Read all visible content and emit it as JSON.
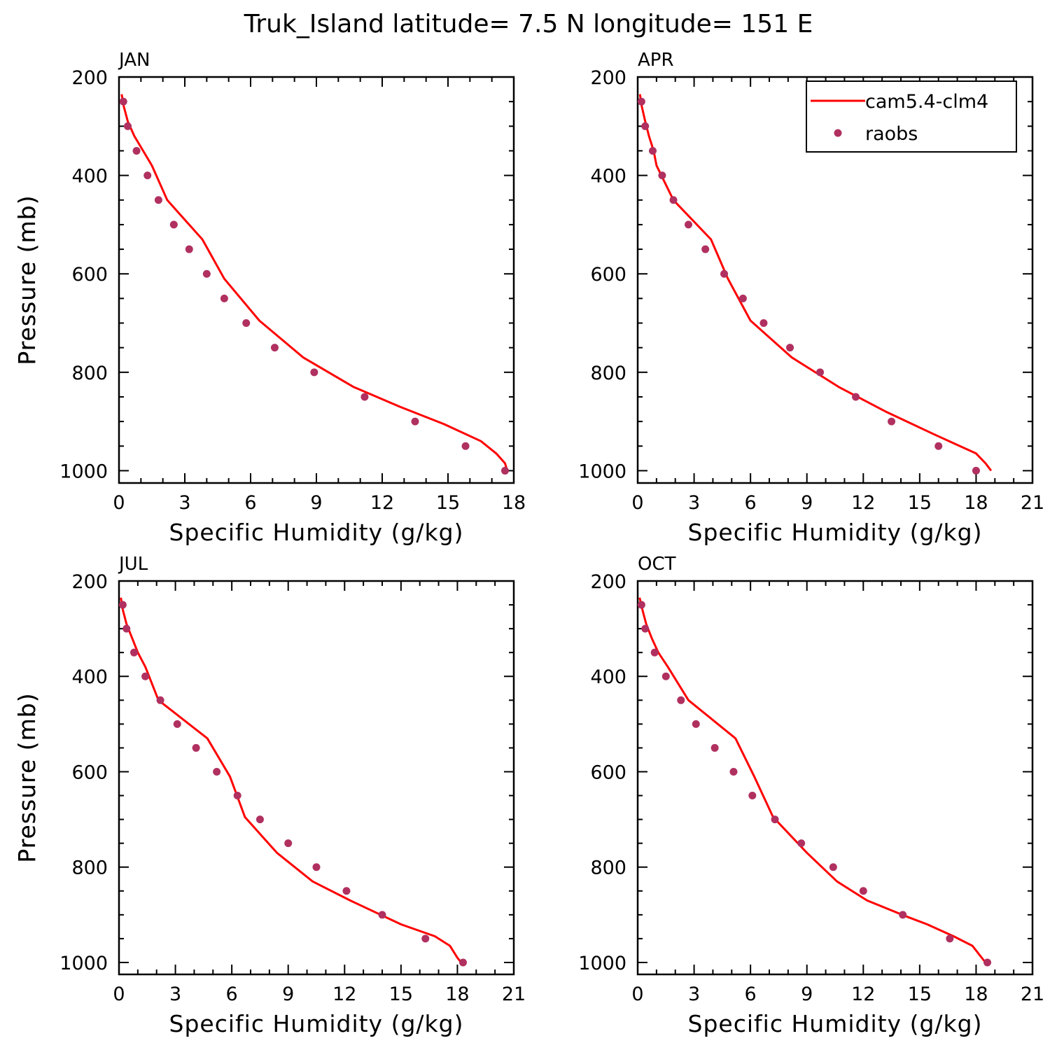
{
  "title": "Truk_Island  latitude= 7.5 N longitude= 151 E",
  "legend": {
    "entries": [
      {
        "label": "cam5.4-clm4",
        "type": "line",
        "color": "#ff0000"
      },
      {
        "label": "raobs",
        "type": "marker",
        "color": "#b03060"
      }
    ]
  },
  "chart_data": [
    {
      "type": "line",
      "month": "JAN",
      "xlabel": "Specific Humidity (g/kg)",
      "ylabel": "Pressure (mb)",
      "xlim": [
        0,
        18
      ],
      "ylim": [
        200,
        1025
      ],
      "y_inverted": true,
      "xticks": [
        0,
        3,
        6,
        9,
        12,
        15,
        18
      ],
      "yticks": [
        200,
        400,
        600,
        800,
        1000
      ],
      "series": [
        {
          "name": "cam5.4-clm4",
          "kind": "line",
          "color": "#ff0000",
          "points": [
            [
              0.12,
              235
            ],
            [
              0.22,
              260
            ],
            [
              0.4,
              290
            ],
            [
              0.7,
              320
            ],
            [
              1.1,
              350
            ],
            [
              1.5,
              380
            ],
            [
              2.2,
              450
            ],
            [
              3.8,
              530
            ],
            [
              4.8,
              610
            ],
            [
              6.4,
              695
            ],
            [
              8.4,
              770
            ],
            [
              10.7,
              830
            ],
            [
              12.8,
              870
            ],
            [
              14.8,
              905
            ],
            [
              16.5,
              940
            ],
            [
              17.2,
              965
            ],
            [
              17.6,
              985
            ],
            [
              17.7,
              1000
            ]
          ]
        },
        {
          "name": "raobs",
          "kind": "scatter",
          "color": "#b03060",
          "points": [
            [
              0.2,
              250
            ],
            [
              0.4,
              300
            ],
            [
              0.8,
              350
            ],
            [
              1.3,
              400
            ],
            [
              1.8,
              450
            ],
            [
              2.5,
              500
            ],
            [
              3.2,
              550
            ],
            [
              4.0,
              600
            ],
            [
              4.8,
              650
            ],
            [
              5.8,
              700
            ],
            [
              7.1,
              750
            ],
            [
              8.9,
              800
            ],
            [
              11.2,
              850
            ],
            [
              13.5,
              900
            ],
            [
              15.8,
              950
            ],
            [
              17.6,
              1000
            ]
          ]
        }
      ]
    },
    {
      "type": "line",
      "month": "APR",
      "xlabel": "Specific Humidity (g/kg)",
      "ylabel": "Pressure (mb)",
      "xlim": [
        0,
        21
      ],
      "ylim": [
        200,
        1025
      ],
      "y_inverted": true,
      "xticks": [
        0,
        3,
        6,
        9,
        12,
        15,
        18,
        21
      ],
      "yticks": [
        200,
        400,
        600,
        800,
        1000
      ],
      "series": [
        {
          "name": "cam5.4-clm4",
          "kind": "line",
          "color": "#ff0000",
          "points": [
            [
              0.12,
              235
            ],
            [
              0.22,
              260
            ],
            [
              0.4,
              290
            ],
            [
              0.6,
              320
            ],
            [
              0.85,
              350
            ],
            [
              1.0,
              380
            ],
            [
              1.9,
              450
            ],
            [
              3.9,
              530
            ],
            [
              4.8,
              610
            ],
            [
              6.0,
              695
            ],
            [
              8.2,
              770
            ],
            [
              10.7,
              830
            ],
            [
              13.2,
              880
            ],
            [
              15.7,
              925
            ],
            [
              18.0,
              965
            ],
            [
              18.5,
              985
            ],
            [
              18.8,
              1000
            ]
          ]
        },
        {
          "name": "raobs",
          "kind": "scatter",
          "color": "#b03060",
          "points": [
            [
              0.2,
              250
            ],
            [
              0.4,
              300
            ],
            [
              0.8,
              350
            ],
            [
              1.3,
              400
            ],
            [
              1.9,
              450
            ],
            [
              2.7,
              500
            ],
            [
              3.6,
              550
            ],
            [
              4.6,
              600
            ],
            [
              5.6,
              650
            ],
            [
              6.7,
              700
            ],
            [
              8.1,
              750
            ],
            [
              9.7,
              800
            ],
            [
              11.6,
              850
            ],
            [
              13.5,
              900
            ],
            [
              16.0,
              950
            ],
            [
              18.0,
              1000
            ]
          ]
        }
      ]
    },
    {
      "type": "line",
      "month": "JUL",
      "xlabel": "Specific Humidity (g/kg)",
      "ylabel": "Pressure (mb)",
      "xlim": [
        0,
        21
      ],
      "ylim": [
        200,
        1025
      ],
      "y_inverted": true,
      "xticks": [
        0,
        3,
        6,
        9,
        12,
        15,
        18,
        21
      ],
      "yticks": [
        200,
        400,
        600,
        800,
        1000
      ],
      "series": [
        {
          "name": "cam5.4-clm4",
          "kind": "line",
          "color": "#ff0000",
          "points": [
            [
              0.1,
              235
            ],
            [
              0.2,
              260
            ],
            [
              0.4,
              290
            ],
            [
              0.7,
              320
            ],
            [
              1.0,
              350
            ],
            [
              1.4,
              380
            ],
            [
              2.1,
              450
            ],
            [
              4.7,
              530
            ],
            [
              5.9,
              610
            ],
            [
              6.7,
              695
            ],
            [
              8.4,
              770
            ],
            [
              10.3,
              830
            ],
            [
              12.3,
              870
            ],
            [
              15.0,
              920
            ],
            [
              16.8,
              945
            ],
            [
              17.6,
              965
            ],
            [
              18.0,
              990
            ],
            [
              18.2,
              1000
            ]
          ]
        },
        {
          "name": "raobs",
          "kind": "scatter",
          "color": "#b03060",
          "points": [
            [
              0.2,
              250
            ],
            [
              0.4,
              300
            ],
            [
              0.8,
              350
            ],
            [
              1.4,
              400
            ],
            [
              2.2,
              450
            ],
            [
              3.1,
              500
            ],
            [
              4.1,
              550
            ],
            [
              5.2,
              600
            ],
            [
              6.3,
              650
            ],
            [
              7.5,
              700
            ],
            [
              9.0,
              750
            ],
            [
              10.5,
              800
            ],
            [
              12.1,
              850
            ],
            [
              14.0,
              900
            ],
            [
              16.3,
              950
            ],
            [
              18.3,
              1000
            ]
          ]
        }
      ]
    },
    {
      "type": "line",
      "month": "OCT",
      "xlabel": "Specific Humidity (g/kg)",
      "ylabel": "Pressure (mb)",
      "xlim": [
        0,
        21
      ],
      "ylim": [
        200,
        1025
      ],
      "y_inverted": true,
      "xticks": [
        0,
        3,
        6,
        9,
        12,
        15,
        18,
        21
      ],
      "yticks": [
        200,
        400,
        600,
        800,
        1000
      ],
      "series": [
        {
          "name": "cam5.4-clm4",
          "kind": "line",
          "color": "#ff0000",
          "points": [
            [
              0.1,
              235
            ],
            [
              0.25,
              260
            ],
            [
              0.45,
              290
            ],
            [
              0.75,
              320
            ],
            [
              1.1,
              350
            ],
            [
              1.6,
              380
            ],
            [
              2.7,
              450
            ],
            [
              5.2,
              530
            ],
            [
              6.2,
              610
            ],
            [
              7.2,
              695
            ],
            [
              9.0,
              770
            ],
            [
              10.6,
              830
            ],
            [
              12.2,
              870
            ],
            [
              14.4,
              905
            ],
            [
              15.4,
              920
            ],
            [
              16.8,
              945
            ],
            [
              17.8,
              965
            ],
            [
              18.2,
              985
            ],
            [
              18.5,
              1000
            ]
          ]
        },
        {
          "name": "raobs",
          "kind": "scatter",
          "color": "#b03060",
          "points": [
            [
              0.2,
              250
            ],
            [
              0.4,
              300
            ],
            [
              0.9,
              350
            ],
            [
              1.5,
              400
            ],
            [
              2.3,
              450
            ],
            [
              3.1,
              500
            ],
            [
              4.1,
              550
            ],
            [
              5.1,
              600
            ],
            [
              6.1,
              650
            ],
            [
              7.3,
              700
            ],
            [
              8.7,
              750
            ],
            [
              10.4,
              800
            ],
            [
              12.0,
              850
            ],
            [
              14.1,
              900
            ],
            [
              16.6,
              950
            ],
            [
              18.6,
              1000
            ]
          ]
        }
      ]
    }
  ]
}
